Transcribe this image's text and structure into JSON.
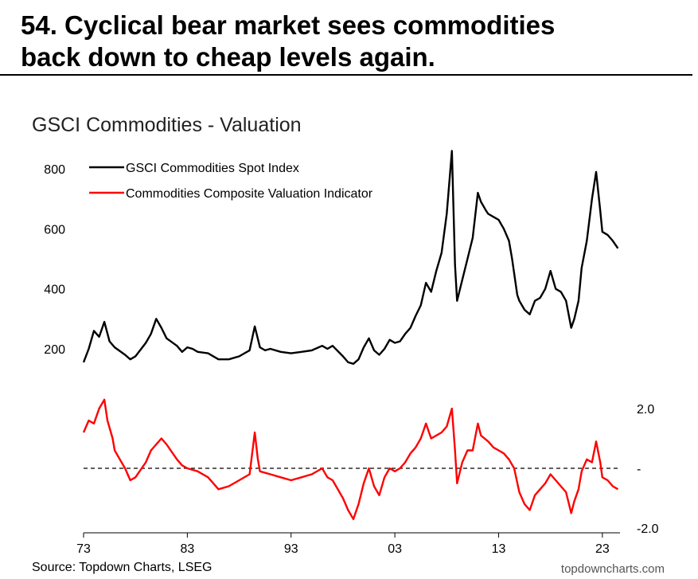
{
  "headline": {
    "line1": "54. Cyclical bear market sees commodities",
    "line2": "back down to cheap levels again."
  },
  "source": "Source: Topdown Charts, LSEG",
  "watermark": "topdowncharts.com",
  "colors": {
    "spot": "#000000",
    "valuation": "#ff0000",
    "zero_line": "#000000"
  },
  "chart_data": [
    {
      "type": "line",
      "title": "GSCI Commodities - Valuation",
      "xlabel": "",
      "ylabel": "",
      "x_ticks": [
        "73",
        "83",
        "93",
        "03",
        "13",
        "23"
      ],
      "x_tick_years": [
        1973,
        1983,
        1993,
        2003,
        2013,
        2023
      ],
      "xlim": [
        1973,
        2024.7
      ],
      "y_ticks": [
        "200",
        "400",
        "600",
        "800"
      ],
      "y_tick_values": [
        200,
        400,
        600,
        800
      ],
      "ylim": [
        130,
        880
      ],
      "legend_position": "top-left",
      "series": [
        {
          "name": "GSCI Commodities Spot Index",
          "x": [
            1973.0,
            1973.5,
            1974.0,
            1974.5,
            1975.0,
            1975.5,
            1976.0,
            1977.0,
            1977.5,
            1978.0,
            1979.0,
            1979.5,
            1980.0,
            1980.5,
            1981.0,
            1982.0,
            1982.5,
            1983.0,
            1983.5,
            1984.0,
            1985.0,
            1986.0,
            1987.0,
            1988.0,
            1988.5,
            1989.0,
            1989.5,
            1990.0,
            1990.5,
            1991.0,
            1992.0,
            1993.0,
            1994.0,
            1995.0,
            1996.0,
            1996.5,
            1997.0,
            1998.0,
            1998.5,
            1999.0,
            1999.5,
            2000.0,
            2000.5,
            2001.0,
            2001.5,
            2002.0,
            2002.5,
            2003.0,
            2003.5,
            2004.0,
            2004.5,
            2005.0,
            2005.5,
            2006.0,
            2006.5,
            2007.0,
            2007.5,
            2008.0,
            2008.5,
            2008.8,
            2009.0,
            2009.5,
            2010.0,
            2010.5,
            2011.0,
            2011.3,
            2011.8,
            2012.0,
            2012.5,
            2013.0,
            2013.5,
            2014.0,
            2014.3,
            2014.8,
            2015.0,
            2015.5,
            2016.0,
            2016.5,
            2017.0,
            2017.5,
            2018.0,
            2018.5,
            2019.0,
            2019.5,
            2020.0,
            2020.3,
            2020.7,
            2021.0,
            2021.5,
            2022.0,
            2022.4,
            2022.8,
            2023.0,
            2023.5,
            2024.0,
            2024.5
          ],
          "values": [
            155,
            200,
            260,
            240,
            290,
            225,
            205,
            180,
            165,
            175,
            220,
            250,
            300,
            270,
            235,
            210,
            190,
            205,
            200,
            190,
            185,
            165,
            165,
            175,
            185,
            195,
            275,
            205,
            195,
            200,
            190,
            185,
            190,
            195,
            210,
            200,
            210,
            175,
            155,
            150,
            165,
            205,
            235,
            195,
            180,
            200,
            230,
            220,
            225,
            250,
            270,
            310,
            345,
            420,
            390,
            460,
            520,
            650,
            860,
            480,
            360,
            430,
            500,
            570,
            720,
            690,
            660,
            650,
            640,
            630,
            600,
            560,
            500,
            380,
            360,
            330,
            315,
            360,
            370,
            400,
            460,
            400,
            390,
            360,
            270,
            300,
            360,
            470,
            560,
            700,
            790,
            660,
            590,
            580,
            560,
            535
          ]
        }
      ]
    },
    {
      "type": "line",
      "title": "",
      "xlabel": "",
      "ylabel": "",
      "x_ticks": [
        "73",
        "83",
        "93",
        "03",
        "13",
        "23"
      ],
      "x_tick_years": [
        1973,
        1983,
        1993,
        2003,
        2013,
        2023
      ],
      "xlim": [
        1973,
        2024.7
      ],
      "y_ticks": [
        "2.0",
        "-",
        "-2.0"
      ],
      "y_tick_values": [
        2.0,
        0,
        -2.0
      ],
      "ylim": [
        -2.0,
        2.0
      ],
      "reference_line": {
        "y": 0,
        "style": "dashed"
      },
      "legend_position": "top-left",
      "series": [
        {
          "name": "Commodities Composite Valuation Indicator",
          "x": [
            1973.0,
            1973.5,
            1974.0,
            1974.5,
            1975.0,
            1975.3,
            1975.8,
            1976.0,
            1976.5,
            1977.0,
            1977.5,
            1978.0,
            1979.0,
            1979.5,
            1980.0,
            1980.5,
            1981.0,
            1982.0,
            1982.5,
            1983.0,
            1984.0,
            1985.0,
            1986.0,
            1987.0,
            1988.0,
            1989.0,
            1989.5,
            1989.8,
            1990.0,
            1991.0,
            1992.0,
            1993.0,
            1994.0,
            1995.0,
            1996.0,
            1996.5,
            1997.0,
            1998.0,
            1998.5,
            1999.0,
            1999.5,
            2000.0,
            2000.5,
            2001.0,
            2001.5,
            2002.0,
            2002.5,
            2003.0,
            2003.5,
            2004.0,
            2004.5,
            2005.0,
            2005.5,
            2006.0,
            2006.5,
            2007.0,
            2007.5,
            2008.0,
            2008.5,
            2008.8,
            2009.0,
            2009.5,
            2010.0,
            2010.5,
            2011.0,
            2011.3,
            2012.0,
            2012.5,
            2013.0,
            2013.5,
            2014.0,
            2014.5,
            2015.0,
            2015.5,
            2016.0,
            2016.5,
            2017.0,
            2017.5,
            2018.0,
            2018.5,
            2019.0,
            2019.5,
            2020.0,
            2020.3,
            2020.7,
            2021.0,
            2021.5,
            2022.0,
            2022.4,
            2022.8,
            2023.0,
            2023.5,
            2024.0,
            2024.5
          ],
          "values": [
            1.2,
            1.6,
            1.5,
            2.0,
            2.3,
            1.6,
            1.0,
            0.6,
            0.3,
            0.0,
            -0.4,
            -0.3,
            0.2,
            0.6,
            0.8,
            1.0,
            0.8,
            0.3,
            0.1,
            0.0,
            -0.1,
            -0.3,
            -0.7,
            -0.6,
            -0.4,
            -0.2,
            1.2,
            0.3,
            -0.1,
            -0.2,
            -0.3,
            -0.4,
            -0.3,
            -0.2,
            0.0,
            -0.3,
            -0.4,
            -1.0,
            -1.4,
            -1.7,
            -1.2,
            -0.5,
            0.0,
            -0.6,
            -0.9,
            -0.3,
            0.0,
            -0.1,
            0.0,
            0.2,
            0.5,
            0.7,
            1.0,
            1.5,
            1.0,
            1.1,
            1.2,
            1.4,
            2.0,
            0.6,
            -0.5,
            0.2,
            0.6,
            0.6,
            1.5,
            1.1,
            0.9,
            0.7,
            0.6,
            0.5,
            0.3,
            0.0,
            -0.8,
            -1.2,
            -1.4,
            -0.9,
            -0.7,
            -0.5,
            -0.2,
            -0.4,
            -0.6,
            -0.8,
            -1.5,
            -1.1,
            -0.7,
            -0.1,
            0.3,
            0.2,
            0.9,
            0.2,
            -0.3,
            -0.4,
            -0.6,
            -0.7
          ]
        }
      ]
    }
  ]
}
